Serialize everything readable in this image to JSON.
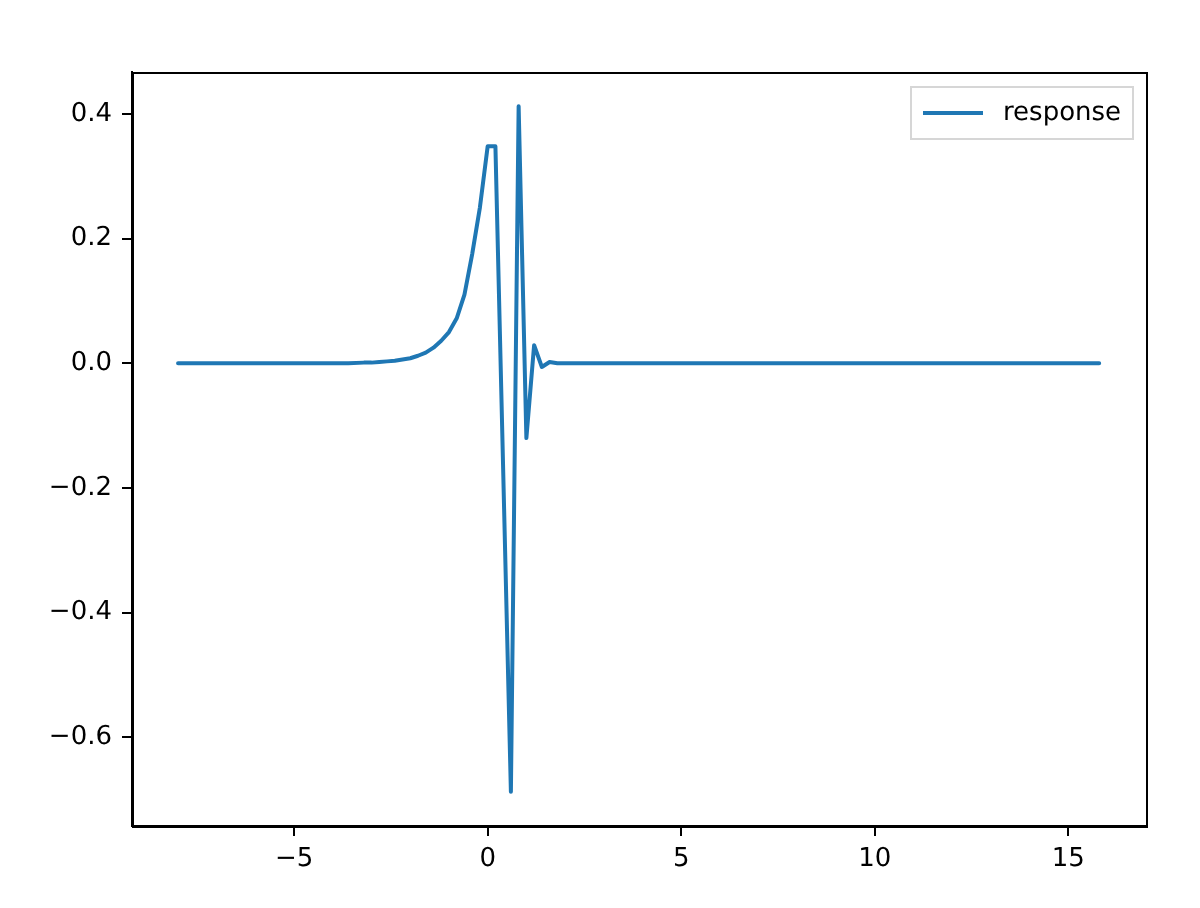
{
  "chart_data": {
    "type": "line",
    "x": [
      -8,
      -7,
      -6,
      -5,
      -4,
      -3.6,
      -3.2,
      -3,
      -2.8,
      -2.6,
      -2.4,
      -2.2,
      -2,
      -1.8,
      -1.6,
      -1.4,
      -1.2,
      -1,
      -0.8,
      -0.6,
      -0.4,
      -0.2,
      0,
      0.2,
      0.4,
      0.6,
      0.8,
      1,
      1.2,
      1.4,
      1.6,
      1.8,
      2,
      3,
      4,
      5,
      6,
      7,
      8,
      9,
      10,
      11,
      12,
      13,
      14,
      15,
      15.8
    ],
    "series": [
      {
        "name": "response",
        "color": "#1f77b4",
        "values": [
          0,
          0,
          0,
          0,
          0,
          0,
          0.001,
          0.001,
          0.002,
          0.003,
          0.004,
          0.006,
          0.008,
          0.012,
          0.017,
          0.025,
          0.036,
          0.05,
          0.072,
          0.11,
          0.175,
          0.25,
          0.348,
          0.348,
          -0.17,
          -0.687,
          0.412,
          -0.12,
          0.029,
          -0.006,
          0.002,
          0,
          0,
          0,
          0,
          0,
          0,
          0,
          0,
          0,
          0,
          0,
          0,
          0,
          0,
          0,
          0
        ]
      }
    ],
    "xlim": [
      -9.19,
      17.01
    ],
    "xticks": [
      {
        "value": -5,
        "label": "−5"
      },
      0,
      5,
      10,
      15
    ],
    "ylim": [
      -0.742,
      0.467
    ],
    "yticks": [
      {
        "value": -0.6,
        "label": "−0.6"
      },
      {
        "value": -0.4,
        "label": "−0.4"
      },
      {
        "value": -0.2,
        "label": "−0.2"
      },
      {
        "value": 0,
        "label": "0.0"
      },
      {
        "value": 0.2,
        "label": "0.2"
      },
      {
        "value": 0.4,
        "label": "0.4"
      }
    ],
    "legend": "top right"
  }
}
